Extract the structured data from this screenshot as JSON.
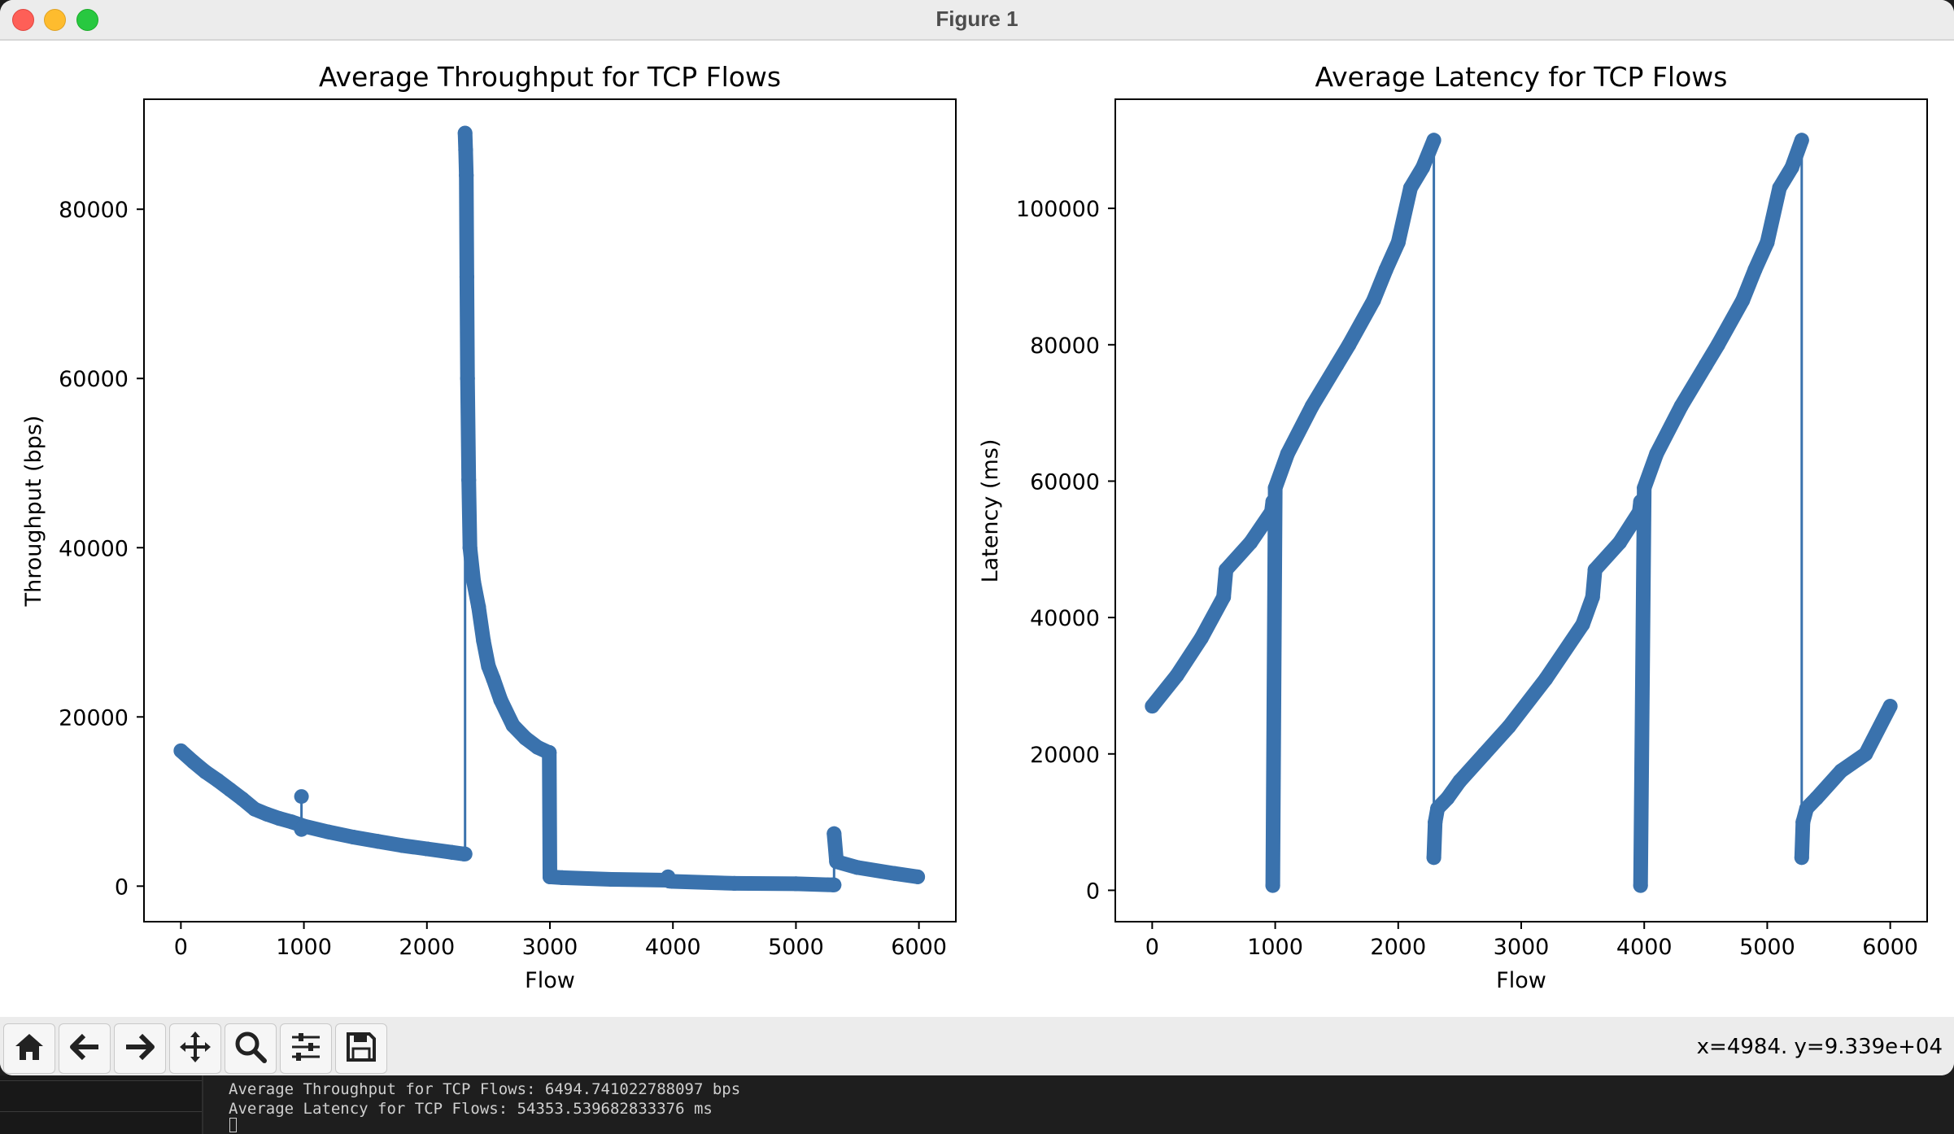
{
  "window": {
    "title": "Figure 1"
  },
  "toolbar": {
    "buttons": [
      {
        "icon": "home-icon",
        "label": "Home"
      },
      {
        "icon": "back-arrow-icon",
        "label": "Back"
      },
      {
        "icon": "forward-arrow-icon",
        "label": "Forward"
      },
      {
        "icon": "pan-icon",
        "label": "Pan"
      },
      {
        "icon": "zoom-icon",
        "label": "Zoom"
      },
      {
        "icon": "configure-subplots-icon",
        "label": "Configure subplots"
      },
      {
        "icon": "save-icon",
        "label": "Save"
      }
    ],
    "coords": "x=4984. y=9.339e+04"
  },
  "terminal": {
    "lines": [
      "Average Throughput for TCP Flows: 6494.741022788097 bps",
      "Average Latency for TCP Flows: 54353.539682833376 ms"
    ]
  },
  "colors": {
    "series": "#3a72ad",
    "titlebar": "#ececec",
    "terminal": "#1e1e1e"
  },
  "chart_data": [
    {
      "type": "line",
      "title": "Average Throughput for TCP Flows",
      "xlabel": "Flow",
      "ylabel": "Throughput (bps)",
      "xlim": [
        -300,
        6300
      ],
      "ylim": [
        -4200,
        93000
      ],
      "xticks": [
        0,
        1000,
        2000,
        3000,
        4000,
        5000,
        6000
      ],
      "yticks": [
        0,
        20000,
        40000,
        60000,
        80000
      ],
      "markers": true,
      "grid": false,
      "series": [
        {
          "x": [
            0,
            100,
            200,
            300,
            400,
            500,
            600,
            700,
            800,
            900,
            980,
            980,
            980,
            1000,
            1200,
            1400,
            1600,
            1800,
            2000,
            2200,
            2300,
            2310,
            2310,
            2315,
            2320,
            2325,
            2330,
            2340,
            2350,
            2380,
            2420,
            2460,
            2500,
            2540,
            2600,
            2700,
            2800,
            2900,
            2990,
            2995,
            3000,
            3100,
            3500,
            3950,
            3960,
            3970,
            4000,
            4500,
            5000,
            5300,
            5310,
            5310,
            5330,
            5500,
            5800,
            5990
          ],
          "y": [
            16000,
            14700,
            13500,
            12500,
            11400,
            10300,
            9100,
            8500,
            8000,
            7600,
            7200,
            10600,
            6700,
            7100,
            6400,
            5800,
            5300,
            4800,
            4400,
            4000,
            3800,
            3800,
            89000,
            87000,
            84000,
            72000,
            60000,
            48000,
            40000,
            36000,
            33000,
            29000,
            26000,
            24500,
            22000,
            19000,
            17500,
            16400,
            15800,
            15800,
            1100,
            1000,
            800,
            700,
            1100,
            600,
            560,
            330,
            280,
            150,
            150,
            6200,
            2900,
            2200,
            1500,
            1100
          ]
        }
      ]
    },
    {
      "type": "line",
      "title": "Average Latency for TCP Flows",
      "xlabel": "Flow",
      "ylabel": "Latency (ms)",
      "xlim": [
        -300,
        6300
      ],
      "ylim": [
        -4600,
        116000
      ],
      "xticks": [
        0,
        1000,
        2000,
        3000,
        4000,
        5000,
        6000
      ],
      "yticks": [
        0,
        20000,
        40000,
        60000,
        80000,
        100000
      ],
      "markers": true,
      "grid": false,
      "series": [
        {
          "x": [
            0,
            200,
            400,
            580,
            600,
            800,
            970,
            980,
            980,
            1000,
            1100,
            1300,
            1500,
            1600,
            1800,
            1900,
            2000,
            2100,
            2200,
            2290,
            2290,
            2300,
            2320,
            2400,
            2500,
            2700,
            2900,
            3200,
            3500,
            3580,
            3600,
            3800,
            3960,
            3970,
            3970,
            4000,
            4100,
            4300,
            4500,
            4600,
            4800,
            4900,
            5000,
            5100,
            5200,
            5280,
            5280,
            5290,
            5320,
            5400,
            5600,
            5800,
            6000
          ],
          "y": [
            27000,
            31500,
            37000,
            43000,
            47000,
            51000,
            55500,
            57000,
            700,
            59000,
            64000,
            71000,
            77000,
            80000,
            86500,
            91000,
            95000,
            103000,
            106000,
            110000,
            4800,
            10000,
            12000,
            13500,
            16000,
            20000,
            24000,
            31000,
            39000,
            43000,
            47000,
            51000,
            55500,
            57000,
            700,
            59000,
            64000,
            71000,
            77000,
            80000,
            86500,
            91000,
            95000,
            103000,
            106000,
            110000,
            4800,
            10000,
            12000,
            13500,
            17500,
            20000,
            27000
          ]
        }
      ]
    }
  ]
}
